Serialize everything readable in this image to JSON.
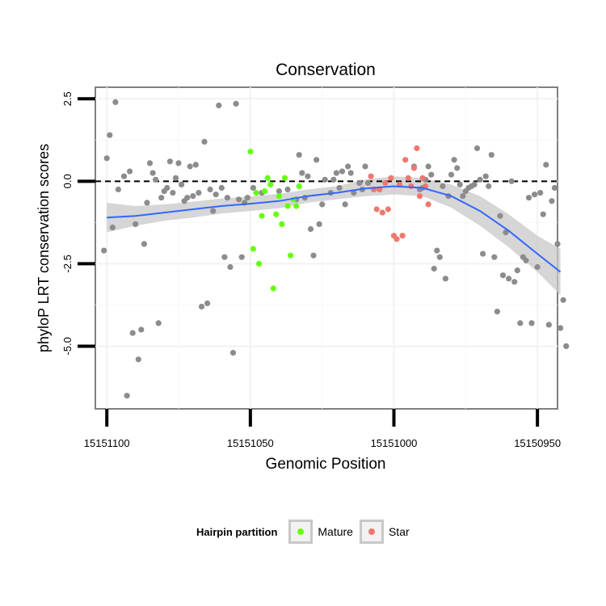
{
  "chart_data": {
    "type": "scatter",
    "title": "Conservation",
    "xlabel": "Genomic Position",
    "ylabel": "phyloP LRT conservation scores",
    "x_reversed": true,
    "xlim": [
      15151104,
      15150943
    ],
    "ylim": [
      -6.9,
      2.85
    ],
    "x_ticks": [
      15151100,
      15151050,
      15151000,
      15150950
    ],
    "x_tick_labels": [
      "15151100",
      "15151050",
      "15151000",
      "15150950"
    ],
    "y_ticks": [
      2.5,
      0,
      -2.5,
      -5
    ],
    "y_tick_labels": [
      "2.5",
      "0.0",
      "-2.5",
      "-5.0"
    ],
    "reference_line": {
      "y": 0,
      "style": "dashed"
    },
    "grid": true,
    "legend": {
      "title": "Hairpin partition",
      "position": "bottom",
      "entries": [
        {
          "label": "Mature",
          "color": "#66ff11"
        },
        {
          "label": "Star",
          "color": "#f0776e"
        }
      ]
    },
    "colors": {
      "other": "#8c8c8c",
      "Mature": "#66ff11",
      "Star": "#f0776e",
      "smooth": "#3366ff",
      "ribbon": "#c8c8c8"
    },
    "points": {
      "other": [
        [
          15151101,
          -2.1
        ],
        [
          15151100,
          0.7
        ],
        [
          15151099,
          1.4
        ],
        [
          15151098,
          -1.4
        ],
        [
          15151097,
          2.4
        ],
        [
          15151096,
          -0.25
        ],
        [
          15151094,
          0.15
        ],
        [
          15151093,
          -6.5
        ],
        [
          15151092,
          0.3
        ],
        [
          15151091,
          -4.6
        ],
        [
          15151090,
          -1.3
        ],
        [
          15151089,
          -5.4
        ],
        [
          15151088,
          -4.5
        ],
        [
          15151087,
          -1.9
        ],
        [
          15151086,
          -0.65
        ],
        [
          15151085,
          0.55
        ],
        [
          15151084,
          0.25
        ],
        [
          15151083,
          0.05
        ],
        [
          15151082,
          -4.3
        ],
        [
          15151081,
          -0.5
        ],
        [
          15151080,
          -0.3
        ],
        [
          15151079,
          -0.2
        ],
        [
          15151078,
          0.6
        ],
        [
          15151077,
          -0.35
        ],
        [
          15151076,
          0.1
        ],
        [
          15151075,
          0.55
        ],
        [
          15151074,
          -0.1
        ],
        [
          15151073,
          -0.6
        ],
        [
          15151072,
          -0.5
        ],
        [
          15151071,
          0.45
        ],
        [
          15151070,
          -0.45
        ],
        [
          15151069,
          0.5
        ],
        [
          15151068,
          -0.35
        ],
        [
          15151067,
          -3.8
        ],
        [
          15151066,
          1.2
        ],
        [
          15151065,
          -3.7
        ],
        [
          15151064,
          -0.25
        ],
        [
          15151063,
          -0.9
        ],
        [
          15151062,
          -0.4
        ],
        [
          15151061,
          2.3
        ],
        [
          15151060,
          -0.2
        ],
        [
          15151059,
          -2.3
        ],
        [
          15151058,
          -0.5
        ],
        [
          15151057,
          -2.6
        ],
        [
          15151056,
          -5.2
        ],
        [
          15151055,
          2.35
        ],
        [
          15151054,
          -0.55
        ],
        [
          15151053,
          -2.3
        ],
        [
          15151052,
          -0.65
        ],
        [
          15151051,
          -0.5
        ],
        [
          15151049,
          -0.2
        ],
        [
          15151046,
          -0.35
        ],
        [
          15151040,
          -0.3
        ],
        [
          15151037,
          -0.25
        ],
        [
          15151034,
          -0.55
        ],
        [
          15151033,
          0.8
        ],
        [
          15151032,
          0.25
        ],
        [
          15151031,
          -0.5
        ],
        [
          15151030,
          0.15
        ],
        [
          15151029,
          -1.45
        ],
        [
          15151028,
          -2.25
        ],
        [
          15151027,
          0.65
        ],
        [
          15151026,
          -1.3
        ],
        [
          15151025,
          -0.7
        ],
        [
          15151024,
          0.05
        ],
        [
          15151022,
          -0.35
        ],
        [
          15151021,
          0.05
        ],
        [
          15151020,
          0.25
        ],
        [
          15151019,
          -0.2
        ],
        [
          15151018,
          0.3
        ],
        [
          15151017,
          -0.7
        ],
        [
          15151016,
          0.45
        ],
        [
          15151015,
          0.25
        ],
        [
          15151014,
          -0.35
        ],
        [
          15151012,
          -0.05
        ],
        [
          15151011,
          -0.25
        ],
        [
          15151010,
          0.45
        ],
        [
          15151009,
          -0.05
        ],
        [
          15150993,
          0.45
        ],
        [
          15150991,
          -0.25
        ],
        [
          15150990,
          -0.2
        ],
        [
          15150989,
          0.05
        ],
        [
          15150988,
          0.45
        ],
        [
          15150987,
          0.2
        ],
        [
          15150986,
          -2.65
        ],
        [
          15150985,
          -2.1
        ],
        [
          15150984,
          -2.3
        ],
        [
          15150983,
          -0.15
        ],
        [
          15150982,
          -2.95
        ],
        [
          15150981,
          -0.45
        ],
        [
          15150980,
          0.2
        ],
        [
          15150979,
          0.65
        ],
        [
          15150978,
          0.4
        ],
        [
          15150977,
          -0.1
        ],
        [
          15150976,
          -0.45
        ],
        [
          15150975,
          -0.3
        ],
        [
          15150974,
          -0.2
        ],
        [
          15150973,
          -0.15
        ],
        [
          15150972,
          -0.1
        ],
        [
          15150971,
          1.0
        ],
        [
          15150970,
          0.05
        ],
        [
          15150969,
          -2.2
        ],
        [
          15150968,
          0.15
        ],
        [
          15150967,
          -0.15
        ],
        [
          15150966,
          0.8
        ],
        [
          15150965,
          -2.3
        ],
        [
          15150964,
          -3.95
        ],
        [
          15150963,
          -1.05
        ],
        [
          15150962,
          -2.85
        ],
        [
          15150961,
          -1.55
        ],
        [
          15150960,
          -2.95
        ],
        [
          15150959,
          0.0
        ],
        [
          15150958,
          -3.05
        ],
        [
          15150957,
          -2.7
        ],
        [
          15150956,
          -4.3
        ],
        [
          15150955,
          -2.3
        ],
        [
          15150954,
          -2.4
        ],
        [
          15150953,
          -0.5
        ],
        [
          15150952,
          -4.3
        ],
        [
          15150951,
          -0.4
        ],
        [
          15150950,
          -2.6
        ],
        [
          15150949,
          -0.35
        ],
        [
          15150948,
          -1.0
        ],
        [
          15150947,
          0.5
        ],
        [
          15150946,
          -4.35
        ],
        [
          15150945,
          -0.6
        ],
        [
          15150944,
          -0.2
        ],
        [
          15150943,
          -1.9
        ],
        [
          15150942,
          -4.45
        ],
        [
          15150941,
          -3.6
        ],
        [
          15150940,
          -5.0
        ]
      ],
      "Mature": [
        [
          15151050,
          0.9
        ],
        [
          15151049,
          -2.05
        ],
        [
          15151048,
          -0.35
        ],
        [
          15151047,
          -2.5
        ],
        [
          15151046,
          -1.05
        ],
        [
          15151045,
          -0.3
        ],
        [
          15151044,
          0.1
        ],
        [
          15151043,
          -0.1
        ],
        [
          15151042,
          -3.25
        ],
        [
          15151041,
          -1.0
        ],
        [
          15151040,
          -0.45
        ],
        [
          15151039,
          -1.3
        ],
        [
          15151038,
          0.1
        ],
        [
          15151037,
          -0.75
        ],
        [
          15151036,
          -2.25
        ],
        [
          15151035,
          -0.55
        ],
        [
          15151034,
          -0.75
        ],
        [
          15151033,
          -0.15
        ]
      ],
      "Star": [
        [
          15151008,
          0.15
        ],
        [
          15151007,
          -0.25
        ],
        [
          15151006,
          -0.85
        ],
        [
          15151005,
          -0.25
        ],
        [
          15151004,
          -0.95
        ],
        [
          15151003,
          -0.05
        ],
        [
          15151002,
          -0.85
        ],
        [
          15151001,
          0.1
        ],
        [
          15151000,
          -1.65
        ],
        [
          15150999,
          -1.75
        ],
        [
          15150998,
          -0.1
        ],
        [
          15150997,
          -1.65
        ],
        [
          15150996,
          0.65
        ],
        [
          15150995,
          0.1
        ],
        [
          15150994,
          -0.15
        ],
        [
          15150993,
          0.4
        ],
        [
          15150992,
          1.0
        ],
        [
          15150991,
          -0.45
        ],
        [
          15150990,
          0.1
        ],
        [
          15150989,
          -0.15
        ],
        [
          15150988,
          -0.7
        ]
      ]
    },
    "smooth": {
      "x": [
        15151100,
        15151090,
        15151080,
        15151070,
        15151060,
        15151050,
        15151040,
        15151030,
        15151020,
        15151010,
        15151000,
        15150990,
        15150980,
        15150970,
        15150960,
        15150950,
        15150942
      ],
      "y": [
        -1.1,
        -1.05,
        -0.95,
        -0.85,
        -0.75,
        -0.68,
        -0.6,
        -0.45,
        -0.35,
        -0.22,
        -0.15,
        -0.2,
        -0.45,
        -0.9,
        -1.5,
        -2.2,
        -2.75
      ],
      "lower": [
        -1.55,
        -1.35,
        -1.2,
        -1.1,
        -0.98,
        -0.9,
        -0.82,
        -0.65,
        -0.55,
        -0.45,
        -0.4,
        -0.45,
        -0.8,
        -1.35,
        -2.0,
        -2.75,
        -3.45
      ],
      "upper": [
        -0.65,
        -0.75,
        -0.7,
        -0.62,
        -0.52,
        -0.46,
        -0.38,
        -0.25,
        -0.15,
        0.05,
        0.15,
        0.1,
        -0.1,
        -0.45,
        -1.0,
        -1.65,
        -2.05
      ]
    }
  }
}
